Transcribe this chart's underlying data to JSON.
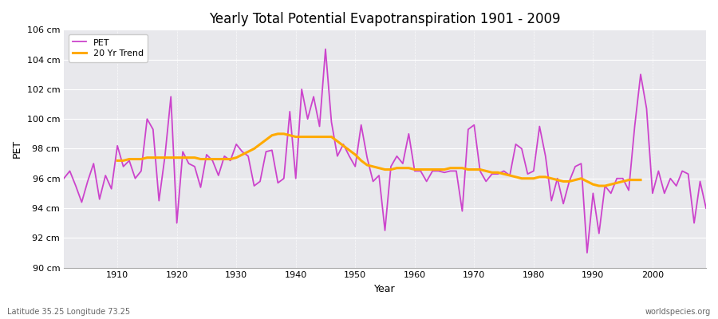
{
  "title": "Yearly Total Potential Evapotranspiration 1901 - 2009",
  "xlabel": "Year",
  "ylabel": "PET",
  "subtitle_left": "Latitude 35.25 Longitude 73.25",
  "subtitle_right": "worldspecies.org",
  "ylim": [
    90,
    106
  ],
  "ytick_labels": [
    "90 cm",
    "92 cm",
    "94 cm",
    "96 cm",
    "98 cm",
    "100 cm",
    "102 cm",
    "104 cm",
    "106 cm"
  ],
  "ytick_values": [
    90,
    92,
    94,
    96,
    98,
    100,
    102,
    104,
    106
  ],
  "pet_color": "#cc44cc",
  "trend_color": "#ffaa00",
  "bg_color": "#ffffff",
  "plot_bg_color": "#e8e8ec",
  "grid_color": "#ffffff",
  "years": [
    1901,
    1902,
    1903,
    1904,
    1905,
    1906,
    1907,
    1908,
    1909,
    1910,
    1911,
    1912,
    1913,
    1914,
    1915,
    1916,
    1917,
    1918,
    1919,
    1920,
    1921,
    1922,
    1923,
    1924,
    1925,
    1926,
    1927,
    1928,
    1929,
    1930,
    1931,
    1932,
    1933,
    1934,
    1935,
    1936,
    1937,
    1938,
    1939,
    1940,
    1941,
    1942,
    1943,
    1944,
    1945,
    1946,
    1947,
    1948,
    1949,
    1950,
    1951,
    1952,
    1953,
    1954,
    1955,
    1956,
    1957,
    1958,
    1959,
    1960,
    1961,
    1962,
    1963,
    1964,
    1965,
    1966,
    1967,
    1968,
    1969,
    1970,
    1971,
    1972,
    1973,
    1974,
    1975,
    1976,
    1977,
    1978,
    1979,
    1980,
    1981,
    1982,
    1983,
    1984,
    1985,
    1986,
    1987,
    1988,
    1989,
    1990,
    1991,
    1992,
    1993,
    1994,
    1995,
    1996,
    1997,
    1998,
    1999,
    2000,
    2001,
    2002,
    2003,
    2004,
    2005,
    2006,
    2007,
    2008,
    2009
  ],
  "pet_values": [
    96.0,
    96.5,
    95.5,
    94.4,
    95.8,
    97.0,
    94.6,
    96.2,
    95.3,
    98.2,
    96.8,
    97.2,
    96.0,
    96.5,
    100.0,
    99.3,
    94.5,
    97.5,
    101.5,
    93.0,
    97.8,
    97.0,
    96.8,
    95.4,
    97.6,
    97.2,
    96.2,
    97.5,
    97.2,
    98.3,
    97.8,
    97.5,
    95.5,
    95.8,
    97.8,
    97.9,
    95.7,
    96.0,
    100.5,
    96.0,
    102.0,
    100.0,
    101.5,
    99.5,
    104.7,
    99.8,
    97.5,
    98.3,
    97.5,
    96.8,
    99.6,
    97.4,
    95.8,
    96.2,
    92.5,
    96.8,
    97.5,
    97.0,
    99.0,
    96.5,
    96.5,
    95.8,
    96.5,
    96.5,
    96.4,
    96.5,
    96.5,
    93.8,
    99.3,
    99.6,
    96.5,
    95.8,
    96.3,
    96.3,
    96.5,
    96.2,
    98.3,
    98.0,
    96.3,
    96.5,
    99.5,
    97.5,
    94.5,
    96.0,
    94.3,
    95.8,
    96.8,
    97.0,
    91.0,
    95.0,
    92.3,
    95.5,
    95.0,
    96.0,
    96.0,
    95.2,
    99.5,
    103.0,
    100.7,
    95.0,
    96.5,
    95.0,
    96.0,
    95.5,
    96.5,
    96.3,
    93.0,
    95.8,
    94.0
  ],
  "trend_values": [
    null,
    null,
    null,
    null,
    null,
    null,
    null,
    null,
    null,
    97.2,
    97.2,
    97.3,
    97.3,
    97.3,
    97.4,
    97.4,
    97.4,
    97.4,
    97.4,
    97.4,
    97.4,
    97.4,
    97.4,
    97.3,
    97.3,
    97.3,
    97.3,
    97.3,
    97.3,
    97.4,
    97.6,
    97.8,
    98.0,
    98.3,
    98.6,
    98.9,
    99.0,
    99.0,
    98.9,
    98.8,
    98.8,
    98.8,
    98.8,
    98.8,
    98.8,
    98.8,
    98.5,
    98.2,
    97.9,
    97.6,
    97.2,
    96.9,
    96.8,
    96.7,
    96.6,
    96.6,
    96.7,
    96.7,
    96.7,
    96.6,
    96.6,
    96.6,
    96.6,
    96.6,
    96.6,
    96.7,
    96.7,
    96.7,
    96.6,
    96.6,
    96.6,
    96.5,
    96.4,
    96.4,
    96.3,
    96.2,
    96.1,
    96.0,
    96.0,
    96.0,
    96.1,
    96.1,
    96.0,
    95.9,
    95.8,
    95.8,
    95.9,
    96.0,
    95.8,
    95.6,
    95.5,
    95.5,
    95.6,
    95.7,
    95.8,
    95.9,
    95.9,
    95.9,
    null,
    null,
    null,
    null,
    null,
    null,
    null,
    null,
    null,
    null,
    null
  ],
  "xtick_years": [
    1910,
    1920,
    1930,
    1940,
    1950,
    1960,
    1970,
    1980,
    1990,
    2000
  ],
  "figsize": [
    9.0,
    4.0
  ],
  "dpi": 100
}
